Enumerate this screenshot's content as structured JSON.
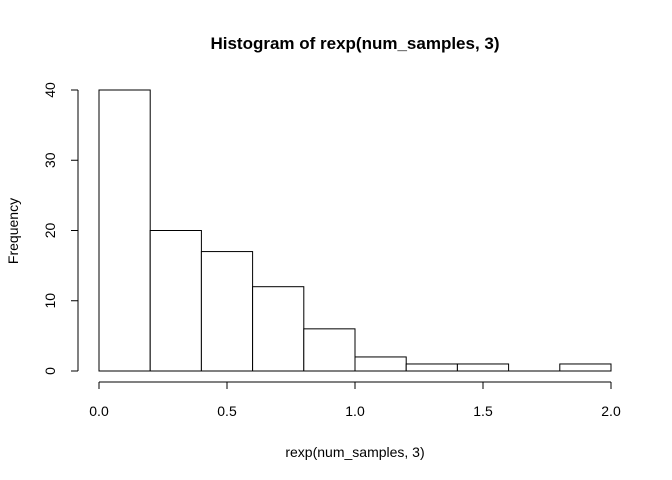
{
  "chart_data": {
    "type": "bar",
    "title": "Histogram of rexp(num_samples, 3)",
    "xlabel": "rexp(num_samples, 3)",
    "ylabel": "Frequency",
    "bins": [
      {
        "from": 0.0,
        "to": 0.2,
        "count": 40
      },
      {
        "from": 0.2,
        "to": 0.4,
        "count": 20
      },
      {
        "from": 0.4,
        "to": 0.6,
        "count": 17
      },
      {
        "from": 0.6,
        "to": 0.8,
        "count": 12
      },
      {
        "from": 0.8,
        "to": 1.0,
        "count": 6
      },
      {
        "from": 1.0,
        "to": 1.2,
        "count": 2
      },
      {
        "from": 1.2,
        "to": 1.4,
        "count": 1
      },
      {
        "from": 1.4,
        "to": 1.6,
        "count": 1
      },
      {
        "from": 1.6,
        "to": 1.8,
        "count": 0
      },
      {
        "from": 1.8,
        "to": 2.0,
        "count": 1
      }
    ],
    "xlim": [
      0,
      2
    ],
    "ylim": [
      0,
      40
    ],
    "x_ticks": [
      0.0,
      0.5,
      1.0,
      1.5,
      2.0
    ],
    "x_tick_labels": [
      "0.0",
      "0.5",
      "1.0",
      "1.5",
      "2.0"
    ],
    "y_ticks": [
      0,
      10,
      20,
      30,
      40
    ],
    "y_tick_labels": [
      "0",
      "10",
      "20",
      "30",
      "40"
    ],
    "bar_fill": "#ffffff",
    "bar_stroke": "#000000",
    "grid": false
  }
}
